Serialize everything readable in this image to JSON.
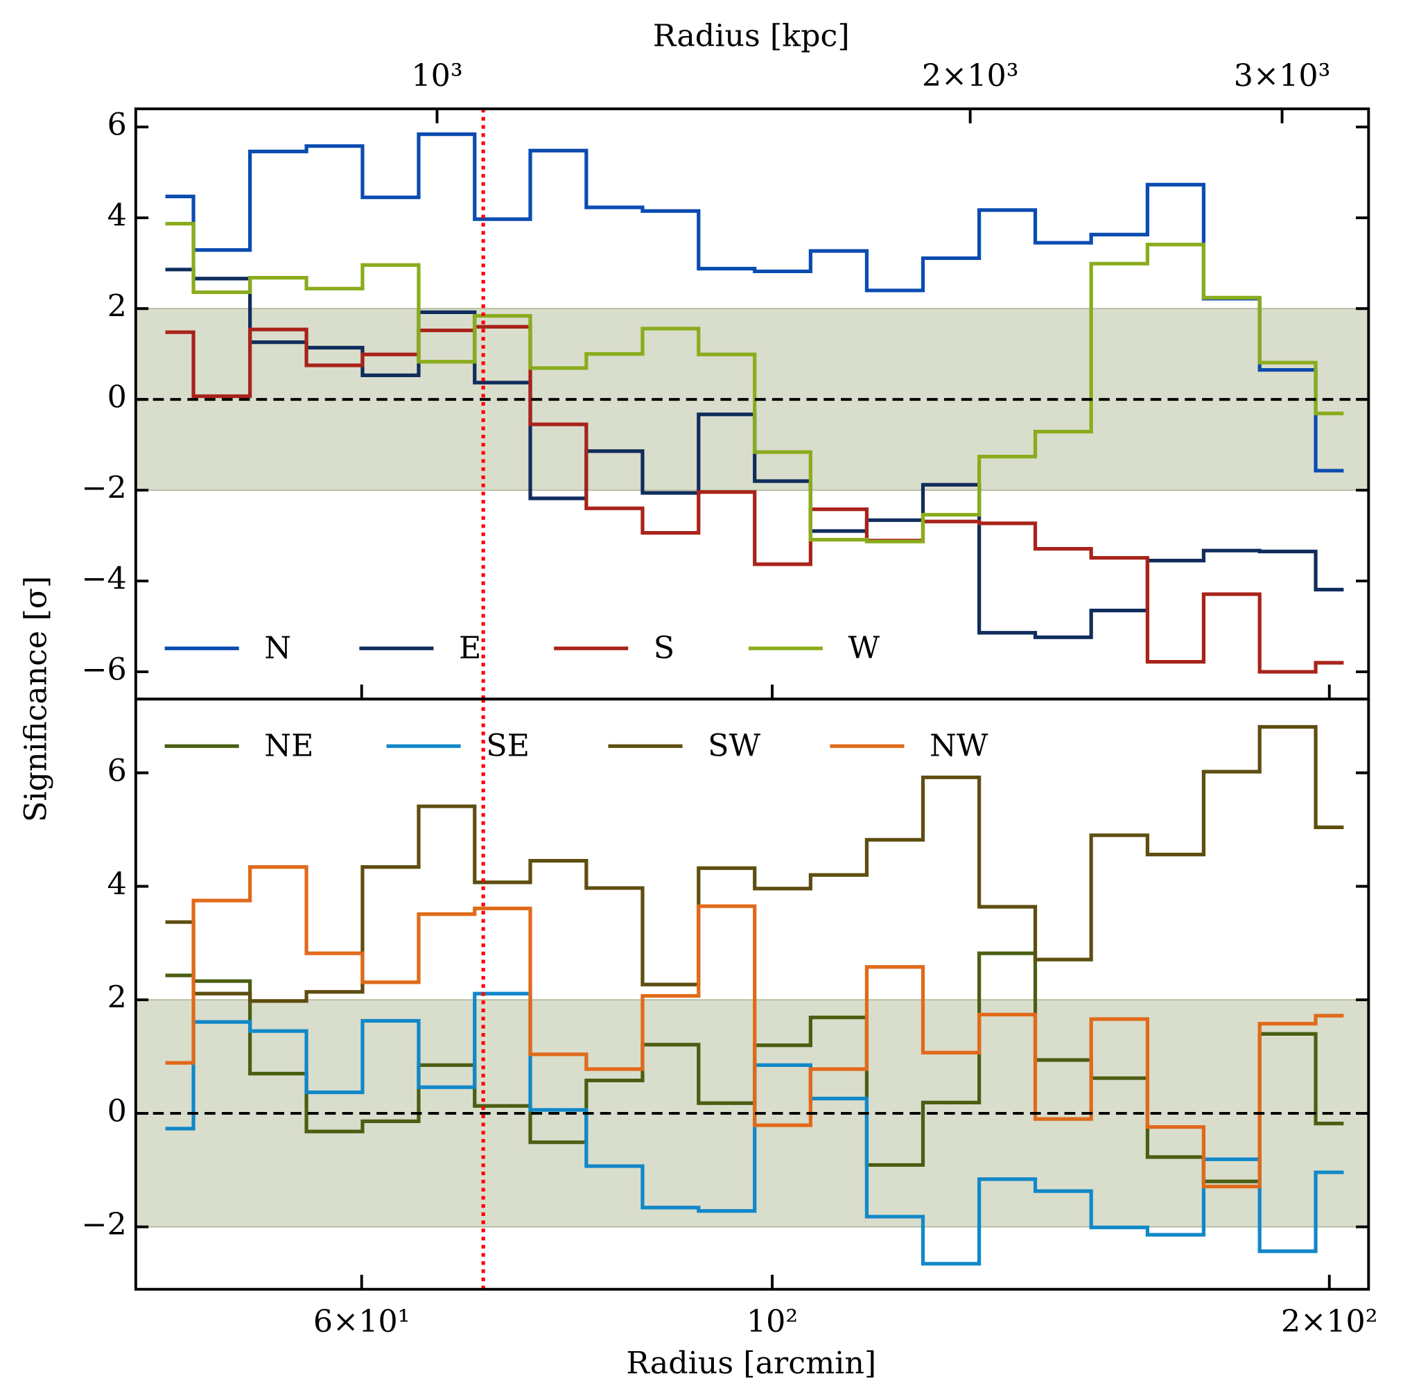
{
  "chart_data": [
    {
      "type": "step",
      "ylabel": "Significance [σ]",
      "x2label": "Radius [kpc]",
      "x2lim": [
        675.9,
        3357
      ],
      "x2ticks": [
        {
          "value": 1000,
          "label": "10³"
        },
        {
          "value": 2000,
          "label": "2×10³"
        },
        {
          "value": 3000,
          "label": "3×10³"
        }
      ],
      "xlim": [
        45.3,
        210
      ],
      "xscale": "log",
      "xticks": [
        {
          "value": 60,
          "label": "6×10¹"
        },
        {
          "value": 100,
          "label": "10²"
        },
        {
          "value": 200,
          "label": "2×10²"
        }
      ],
      "ylim": [
        -6.6,
        6.4
      ],
      "yticks": [
        {
          "value": -6,
          "label": "−6"
        },
        {
          "value": -4,
          "label": "−4"
        },
        {
          "value": -2,
          "label": "−2"
        },
        0,
        2,
        4,
        6
      ],
      "shade": [
        -2,
        2
      ],
      "shade_color": "#d9ddcc",
      "hline": 0,
      "vline": 69.8,
      "vline_color": "#ff0000",
      "legend": "lower left",
      "legend_ncol": 4,
      "x": [
        47.0,
        50.4,
        54.1,
        58.0,
        62.2,
        66.7,
        71.5,
        76.6,
        82.2,
        88.1,
        94.5,
        101.3,
        108.6,
        116.5,
        124.9,
        134.0,
        143.6,
        154.0,
        165.2,
        177.1,
        189.9,
        203.6
      ],
      "series": [
        {
          "name": "N",
          "color": "#0a4cb0",
          "values": [
            4.47,
            3.29,
            5.46,
            5.58,
            4.45,
            5.84,
            3.97,
            5.48,
            4.23,
            4.15,
            2.88,
            2.82,
            3.27,
            2.4,
            3.11,
            4.17,
            3.45,
            3.63,
            4.73,
            2.22,
            0.65,
            -1.57
          ]
        },
        {
          "name": "E",
          "color": "#0f2d5c",
          "values": [
            2.86,
            2.66,
            1.26,
            1.14,
            0.53,
            1.92,
            0.37,
            -2.18,
            -1.14,
            -2.06,
            -0.33,
            -1.8,
            -2.9,
            -2.66,
            -1.88,
            -5.14,
            -5.24,
            -4.65,
            -3.55,
            -3.33,
            -3.35,
            -4.19
          ]
        },
        {
          "name": "S",
          "color": "#a8231a",
          "values": [
            1.48,
            0.07,
            1.54,
            0.75,
            0.99,
            1.52,
            1.6,
            -0.55,
            -2.4,
            -2.94,
            -2.04,
            -3.63,
            -2.42,
            -3.11,
            -2.69,
            -2.73,
            -3.29,
            -3.49,
            -5.78,
            -4.29,
            -6.0,
            -5.8
          ]
        },
        {
          "name": "W",
          "color": "#8aac1c",
          "values": [
            3.87,
            2.36,
            2.68,
            2.44,
            2.96,
            0.83,
            1.84,
            0.69,
            1.0,
            1.56,
            0.99,
            -1.16,
            -3.09,
            -3.13,
            -2.54,
            -1.26,
            -0.71,
            2.99,
            3.41,
            2.24,
            0.81,
            -0.31
          ]
        }
      ]
    },
    {
      "type": "step",
      "xlabel": "Radius [arcmin]",
      "xlim": [
        45.3,
        210
      ],
      "xscale": "log",
      "xticks": [
        {
          "value": 60,
          "label": "6×10¹"
        },
        {
          "value": 100,
          "label": "10²"
        },
        {
          "value": 200,
          "label": "2×10²"
        }
      ],
      "ylim": [
        -3.1,
        7.3
      ],
      "yticks": [
        {
          "value": -2,
          "label": "−2"
        },
        0,
        2,
        4,
        6
      ],
      "shade": [
        -2,
        2
      ],
      "shade_color": "#d9ddcc",
      "hline": 0,
      "vline": 69.8,
      "vline_color": "#ff0000",
      "legend": "upper left",
      "legend_ncol": 4,
      "x": [
        47.0,
        50.4,
        54.1,
        58.0,
        62.2,
        66.7,
        71.5,
        76.6,
        82.2,
        88.1,
        94.5,
        101.3,
        108.6,
        116.5,
        124.9,
        134.0,
        143.6,
        154.0,
        165.2,
        177.1,
        189.9,
        203.6
      ],
      "series": [
        {
          "name": "NE",
          "color": "#4b5e12",
          "values": [
            2.43,
            2.33,
            0.7,
            -0.32,
            -0.14,
            0.85,
            0.13,
            -0.51,
            0.58,
            1.21,
            0.18,
            1.2,
            1.69,
            -0.91,
            0.19,
            2.82,
            0.94,
            0.62,
            -0.77,
            -1.2,
            1.4,
            -0.18
          ]
        },
        {
          "name": "SE",
          "color": "#1188c8",
          "values": [
            -0.27,
            1.61,
            1.45,
            0.37,
            1.63,
            0.46,
            2.11,
            0.06,
            -0.93,
            -1.66,
            -1.72,
            0.85,
            0.26,
            -1.82,
            -2.65,
            -1.16,
            -1.37,
            -2.01,
            -2.14,
            -0.81,
            -2.43,
            -1.04
          ]
        },
        {
          "name": "SW",
          "color": "#5e4e10",
          "values": [
            3.37,
            2.11,
            1.98,
            2.14,
            4.34,
            5.41,
            4.07,
            4.45,
            3.97,
            2.27,
            4.32,
            3.96,
            4.2,
            4.82,
            5.92,
            3.64,
            2.71,
            4.9,
            4.56,
            6.02,
            6.81,
            5.04
          ]
        },
        {
          "name": "NW",
          "color": "#e06a1a",
          "values": [
            0.89,
            3.75,
            4.34,
            2.82,
            2.31,
            3.51,
            3.61,
            1.04,
            0.78,
            2.07,
            3.65,
            -0.21,
            0.78,
            2.58,
            1.07,
            1.74,
            -0.1,
            1.66,
            -0.24,
            -1.29,
            1.58,
            1.72
          ]
        }
      ]
    }
  ]
}
